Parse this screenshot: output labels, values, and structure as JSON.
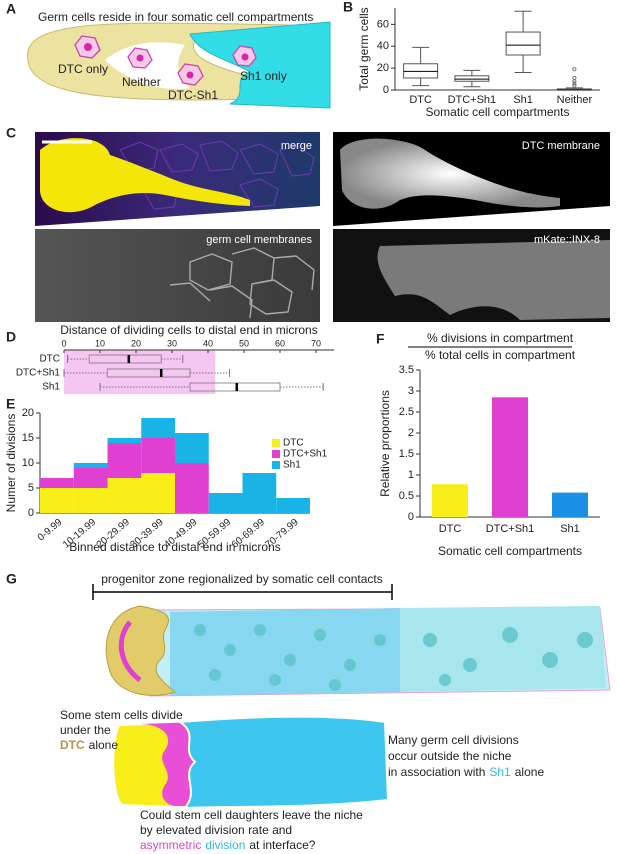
{
  "panel_labels": [
    "A",
    "B",
    "C",
    "D",
    "E",
    "F",
    "G"
  ],
  "panel_a": {
    "title": "Germ cells reside in four somatic cell compartments",
    "labels": [
      "DTC only",
      "Neither",
      "DTC-Sh1",
      "Sh1 only"
    ]
  },
  "panel_c": {
    "labels": [
      "merge",
      "DTC membrane",
      "germ cell membranes",
      "mKate::INX-8"
    ]
  },
  "panel_g": {
    "title": "progenitor zone regionalized by somatic cell contacts",
    "notes": [
      [
        [
          "Some stem cells divide"
        ],
        [
          "under the"
        ],
        [
          "DTC",
          "alone"
        ]
      ],
      [
        [
          "Many germ cell divisions"
        ],
        [
          "occur outside the niche"
        ],
        [
          "in association with",
          "Sh1",
          "alone"
        ]
      ],
      [
        [
          "Could stem cell daughters leave the niche"
        ],
        [
          "by elevated division rate and"
        ],
        [
          "asymmetric",
          "division",
          "at interface?"
        ]
      ]
    ]
  },
  "chart_data": [
    {
      "type": "box",
      "orientation": "vertical",
      "ylabel": "Total germ cells",
      "xlabel": "Somatic cell compartments",
      "categories": [
        "DTC",
        "DTC+Sh1",
        "Sh1",
        "Neither"
      ],
      "boxes": [
        {
          "whislo": 4,
          "q1": 11,
          "med": 17,
          "q3": 24,
          "whishi": 39,
          "fliers": []
        },
        {
          "whislo": 3,
          "q1": 8,
          "med": 10,
          "q3": 13,
          "whishi": 18,
          "fliers": []
        },
        {
          "whislo": 16,
          "q1": 32,
          "med": 41,
          "q3": 53,
          "whishi": 72,
          "fliers": []
        },
        {
          "whislo": 0,
          "q1": 0,
          "med": 0,
          "q3": 1,
          "whishi": 2,
          "fliers": [
            4,
            6,
            8,
            11,
            19
          ]
        }
      ],
      "color": "#555555",
      "ylim": [
        0,
        75
      ],
      "yticks": [
        0,
        20,
        40,
        60
      ]
    },
    {
      "type": "box",
      "orientation": "horizontal",
      "title": "Distance of dividing cells to distal end in microns",
      "categories": [
        "DTC",
        "DTC+Sh1",
        "Sh1"
      ],
      "boxes": [
        {
          "whislo": 1,
          "q1": 7,
          "med": 18,
          "q3": 27,
          "whishi": 33
        },
        {
          "whislo": 0,
          "q1": 12,
          "med": 27,
          "q3": 35,
          "whishi": 46
        },
        {
          "whislo": 10,
          "q1": 35,
          "med": 48,
          "q3": 60,
          "whishi": 72
        }
      ],
      "color": "#777777",
      "shaded_range": [
        0,
        42
      ],
      "shade_color": "#f6c6f2",
      "xlim": [
        0,
        75
      ],
      "xticks": [
        0,
        10,
        20,
        30,
        40,
        50,
        60,
        70
      ]
    },
    {
      "type": "bar",
      "stacked": true,
      "ylabel": "Numer of divisions",
      "xlabel": "Binned distance to distal end in microns",
      "categories": [
        "0-9.99",
        "10-19.99",
        "20-29.99",
        "30-39.99",
        "40-49.99",
        "50-59.99",
        "60-69.99",
        "70-79.99"
      ],
      "series": [
        {
          "name": "DTC",
          "color": "#f7ee1a",
          "values": [
            5,
            5,
            7,
            8,
            0,
            0,
            0,
            0
          ]
        },
        {
          "name": "DTC+Sh1",
          "color": "#e040d0",
          "values": [
            2,
            4,
            7,
            7,
            10,
            0,
            0,
            0
          ]
        },
        {
          "name": "Sh1",
          "color": "#1ab3e6",
          "values": [
            0,
            1,
            1,
            4,
            6,
            4,
            8,
            3
          ]
        }
      ],
      "legend": "upper right",
      "ylim": [
        0,
        20
      ],
      "yticks": [
        0,
        5,
        10,
        15,
        20
      ]
    },
    {
      "type": "bar",
      "title": "% divisions in compartment",
      "subtitle": "% total cells in compartment",
      "ylabel": "Relative proportions",
      "xlabel": "Somatic cell compartments",
      "categories": [
        "DTC",
        "DTC+Sh1",
        "Sh1"
      ],
      "values": [
        0.78,
        2.85,
        0.58
      ],
      "colors": [
        "#f7ee1a",
        "#e040d0",
        "#1a8fe6"
      ],
      "ylim": [
        0,
        3.5
      ],
      "yticks": [
        0,
        0.5,
        1,
        1.5,
        2,
        2.5,
        3,
        3.5
      ]
    }
  ]
}
